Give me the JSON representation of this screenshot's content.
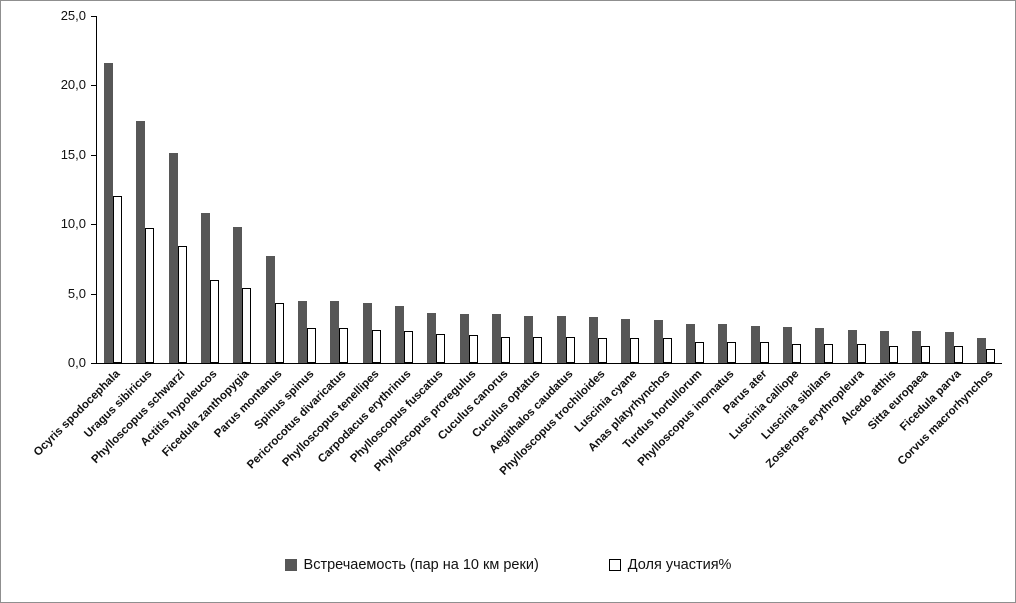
{
  "chart_data": {
    "type": "bar",
    "categories": [
      "Ocyris spodocephala",
      "Uragus sibiricus",
      "Phylloscopus schwarzi",
      "Actitis hypoleucos",
      "Ficedula zanthopygia",
      "Parus montanus",
      "Spinus spinus",
      "Pericrocotus divaricatus",
      "Phylloscopus tenellipes",
      "Carpodacus erythrinus",
      "Phylloscopus fuscatus",
      "Phylloscopus proregulus",
      "Cuculus canorus",
      "Cuculus optatus",
      "Aegithalos caudatus",
      "Phylloscopus trochiloides",
      "Luscinia cyane",
      "Anas platyrhynchos",
      "Turdus hortullorum",
      "Phylloscopus inornatus",
      "Parus ater",
      "Luscinia calliope",
      "Luscinia sibilans",
      "Zosterops erythropleura",
      "Alcedo atthis",
      "Sitta europaea",
      "Ficedula parva",
      "Corvus macrorhynchos"
    ],
    "series": [
      {
        "name": "Встречаемость (пар на 10 км реки)",
        "color": "#575757",
        "values": [
          21.6,
          17.4,
          15.1,
          10.8,
          9.8,
          7.7,
          4.5,
          4.5,
          4.3,
          4.1,
          3.6,
          3.5,
          3.5,
          3.4,
          3.4,
          3.3,
          3.2,
          3.1,
          2.8,
          2.8,
          2.7,
          2.6,
          2.5,
          2.4,
          2.3,
          2.3,
          2.2,
          1.8
        ]
      },
      {
        "name": "Доля участия%",
        "color": "#ffffff",
        "values": [
          12.0,
          9.7,
          8.4,
          6.0,
          5.4,
          4.3,
          2.5,
          2.5,
          2.4,
          2.3,
          2.1,
          2.0,
          1.9,
          1.9,
          1.9,
          1.8,
          1.8,
          1.8,
          1.5,
          1.5,
          1.5,
          1.4,
          1.4,
          1.4,
          1.2,
          1.2,
          1.2,
          1.0
        ]
      }
    ],
    "title": "",
    "xlabel": "",
    "ylabel": "",
    "ylim": [
      0,
      25
    ],
    "yticks": [
      {
        "label": "0,0",
        "value": 0
      },
      {
        "label": "5,0",
        "value": 5
      },
      {
        "label": "10,0",
        "value": 10
      },
      {
        "label": "15,0",
        "value": 15
      },
      {
        "label": "20,0",
        "value": 20
      },
      {
        "label": "25,0",
        "value": 25
      }
    ],
    "grid": false,
    "legend_position": "bottom"
  },
  "legend": {
    "series1": "Встречаемость (пар на 10 км реки)",
    "series2": "Доля участия%"
  }
}
